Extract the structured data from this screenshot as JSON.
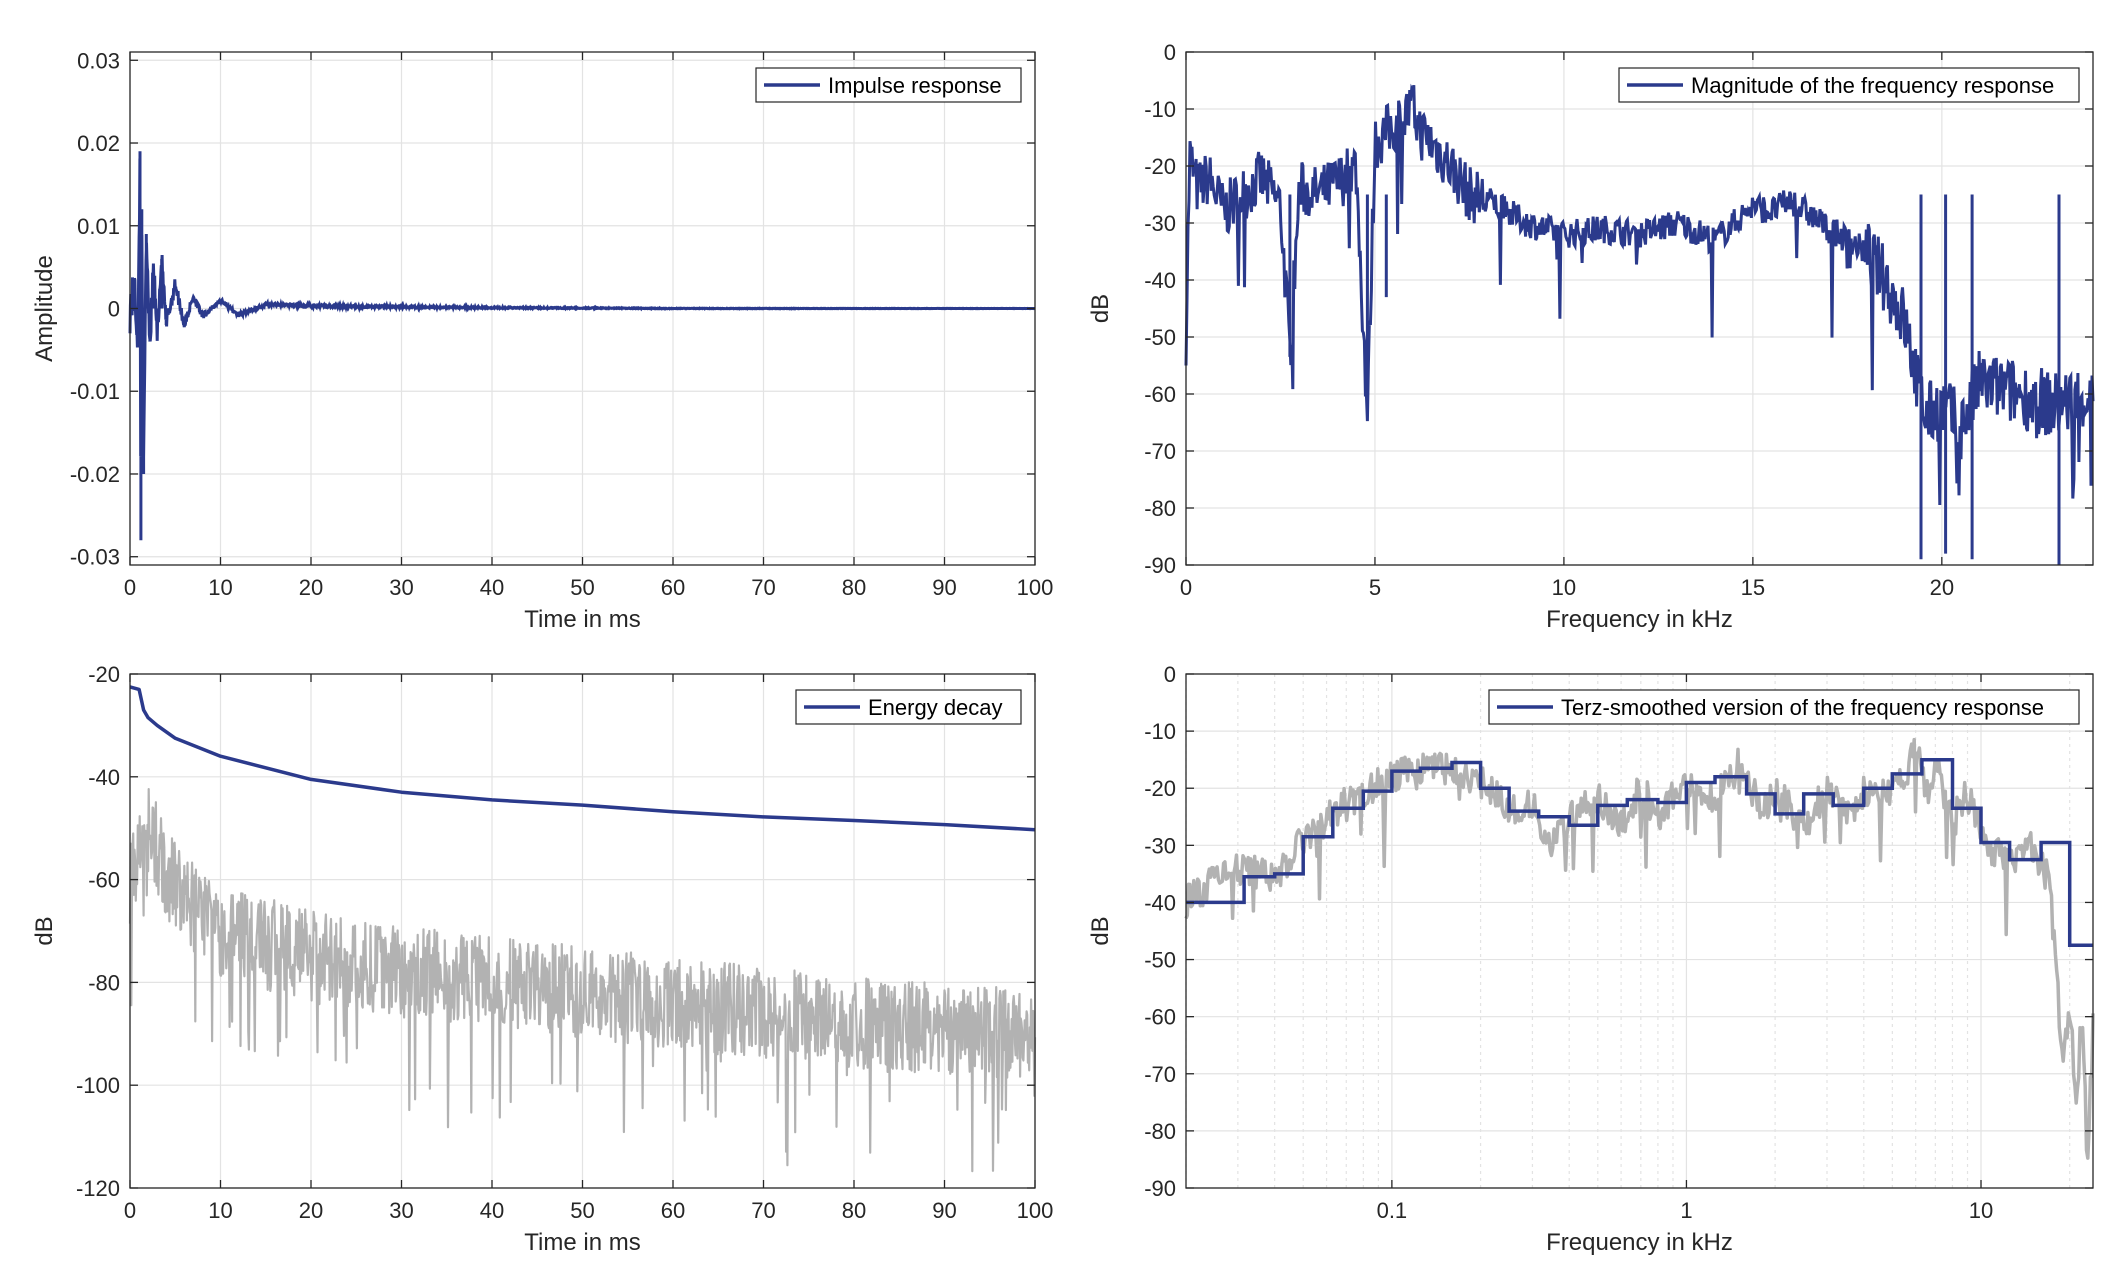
{
  "colors": {
    "primary": "#2b3a8c",
    "secondary": "#b2b2b2",
    "grid": "#e3e3e3",
    "axis": "#262626"
  },
  "chart_data": [
    {
      "type": "line",
      "title": "",
      "xlabel": "Time in ms",
      "ylabel": "Amplitude",
      "xlim": [
        0,
        100
      ],
      "ylim": [
        -0.031,
        0.031
      ],
      "xticks": [
        "0",
        "10",
        "20",
        "30",
        "40",
        "50",
        "60",
        "70",
        "80",
        "90",
        "100"
      ],
      "yticks": [
        "0.03",
        "0.02",
        "0.01",
        "0",
        "-0.01",
        "-0.02",
        "-0.03"
      ],
      "grid": true,
      "legend_position": "top-right",
      "series": [
        {
          "name": "Impulse response",
          "x": [
            0,
            0.5,
            0.9,
            1.1,
            1.2,
            1.3,
            1.5,
            1.8,
            2.2,
            2.6,
            3,
            3.5,
            4,
            5,
            6,
            7,
            8,
            10,
            12,
            15,
            20,
            30,
            40,
            60,
            80,
            100
          ],
          "y": [
            0,
            0.002,
            -0.004,
            0.019,
            -0.028,
            0.012,
            -0.02,
            0.009,
            -0.004,
            0.005,
            -0.003,
            0.006,
            -0.002,
            0.003,
            -0.002,
            0.0015,
            -0.001,
            0.001,
            -0.0008,
            0.0005,
            0.0003,
            0.0002,
            0.0001,
            0,
            0,
            0
          ]
        }
      ]
    },
    {
      "type": "line",
      "title": "",
      "xlabel": "Frequency in kHz",
      "ylabel": "dB",
      "xlim": [
        0,
        24
      ],
      "ylim": [
        -90,
        0
      ],
      "xticks": [
        "0",
        "5",
        "10",
        "15",
        "20"
      ],
      "yticks": [
        "0",
        "-10",
        "-20",
        "-30",
        "-40",
        "-50",
        "-60",
        "-70",
        "-80",
        "-90"
      ],
      "grid": true,
      "legend_position": "top-right",
      "series": [
        {
          "name": "Magnitude of the frequency response",
          "x": [
            0,
            0.1,
            0.3,
            0.6,
            1.0,
            1.5,
            2.0,
            2.5,
            2.75,
            3.0,
            3.5,
            4.0,
            4.5,
            4.8,
            5.0,
            5.5,
            6.0,
            6.2,
            6.5,
            7.0,
            7.5,
            8.0,
            9.0,
            10.0,
            11.0,
            12.0,
            13.0,
            14.0,
            15.0,
            15.5,
            16.0,
            17.0,
            18.0,
            18.5,
            19.0,
            19.4,
            19.6,
            20.0,
            20.5,
            21.0,
            22.0,
            23.0,
            24.0
          ],
          "y": [
            -50,
            -18,
            -24,
            -22,
            -28,
            -25,
            -22,
            -27,
            -53,
            -24,
            -25,
            -23,
            -20,
            -64,
            -16,
            -13,
            -10,
            -14,
            -16,
            -20,
            -25,
            -26,
            -30,
            -32,
            -31,
            -32,
            -30,
            -33,
            -27,
            -28,
            -26,
            -31,
            -35,
            -40,
            -47,
            -60,
            -64,
            -62,
            -66,
            -58,
            -60,
            -62,
            -60
          ]
        }
      ]
    },
    {
      "type": "line",
      "title": "",
      "xlabel": "Time in ms",
      "ylabel": "dB",
      "xlim": [
        0,
        100
      ],
      "ylim": [
        -120,
        -20
      ],
      "xticks": [
        "0",
        "10",
        "20",
        "30",
        "40",
        "50",
        "60",
        "70",
        "80",
        "90",
        "100"
      ],
      "yticks": [
        "-20",
        "-40",
        "-60",
        "-80",
        "-100",
        "-120"
      ],
      "grid": true,
      "legend_position": "top-right",
      "series": [
        {
          "name": "Energy decay",
          "x": [
            0,
            1,
            1.5,
            2,
            3,
            5,
            10,
            20,
            30,
            40,
            50,
            60,
            70,
            80,
            90,
            100
          ],
          "y": [
            -22.5,
            -23,
            -27,
            -28.5,
            -30,
            -32.5,
            -36,
            -40.5,
            -43,
            -44.5,
            -45.5,
            -46.8,
            -47.8,
            -48.5,
            -49.3,
            -50.3
          ]
        },
        {
          "name": "",
          "x": [
            0,
            2,
            5,
            10,
            20,
            30,
            40,
            50,
            60,
            70,
            80,
            90,
            100
          ],
          "y": [
            -60,
            -50,
            -62,
            -70,
            -75,
            -78,
            -80,
            -82,
            -84,
            -86,
            -88,
            -89,
            -90
          ]
        }
      ]
    },
    {
      "type": "line",
      "title": "",
      "xlabel": "Frequency in kHz",
      "ylabel": "dB",
      "xscale": "log",
      "xlim": [
        0.02,
        24
      ],
      "ylim": [
        -90,
        0
      ],
      "xticks": [
        "0.1",
        "1",
        "10"
      ],
      "yticks": [
        "0",
        "-10",
        "-20",
        "-30",
        "-40",
        "-50",
        "-60",
        "-70",
        "-80",
        "-90"
      ],
      "grid": true,
      "legend_position": "top-right",
      "series": [
        {
          "name": "Terz-smoothed version of the frequency response",
          "x": [
            0.02,
            0.025,
            0.0315,
            0.04,
            0.05,
            0.063,
            0.08,
            0.1,
            0.125,
            0.16,
            0.2,
            0.25,
            0.315,
            0.4,
            0.5,
            0.63,
            0.8,
            1.0,
            1.25,
            1.6,
            2.0,
            2.5,
            3.15,
            4.0,
            5.0,
            6.3,
            8.0,
            10.0,
            12.5,
            16.0,
            20.0,
            24.0
          ],
          "y": [
            -40,
            -40,
            -35.5,
            -35,
            -28.5,
            -23.5,
            -20.5,
            -17,
            -16.5,
            -15.5,
            -20,
            -24,
            -25,
            -26.5,
            -23,
            -22,
            -22.5,
            -19,
            -18,
            -21,
            -24.5,
            -21,
            -23,
            -20,
            -17.5,
            -15,
            -23.5,
            -29.5,
            -32.5,
            -29.5,
            -47.5,
            -47.5
          ]
        },
        {
          "name": "",
          "x": [
            0.02,
            0.025,
            0.03,
            0.04,
            0.05,
            0.063,
            0.08,
            0.1,
            0.125,
            0.16,
            0.2,
            0.25,
            0.3,
            0.35,
            0.4,
            0.5,
            0.6,
            0.7,
            0.8,
            1.0,
            1.2,
            1.5,
            1.8,
            2.0,
            2.5,
            3.0,
            3.5,
            4.0,
            5.0,
            5.5,
            6.0,
            6.5,
            7.0,
            8.0,
            9.0,
            10.0,
            11.0,
            13.0,
            15.0,
            17.0,
            18.0,
            19.0,
            20.0,
            21.0,
            22.0,
            23.0,
            24.0
          ],
          "y": [
            -40,
            -36,
            -34,
            -36,
            -29,
            -24,
            -21,
            -18,
            -17,
            -16,
            -19,
            -24,
            -23,
            -30,
            -25,
            -22,
            -26,
            -20,
            -25,
            -18,
            -22,
            -16,
            -24,
            -20,
            -27,
            -20,
            -24,
            -21,
            -20,
            -18,
            -12,
            -22,
            -16,
            -25,
            -21,
            -28,
            -31,
            -33,
            -30,
            -36,
            -52,
            -70,
            -58,
            -75,
            -60,
            -85,
            -62
          ]
        }
      ]
    }
  ]
}
